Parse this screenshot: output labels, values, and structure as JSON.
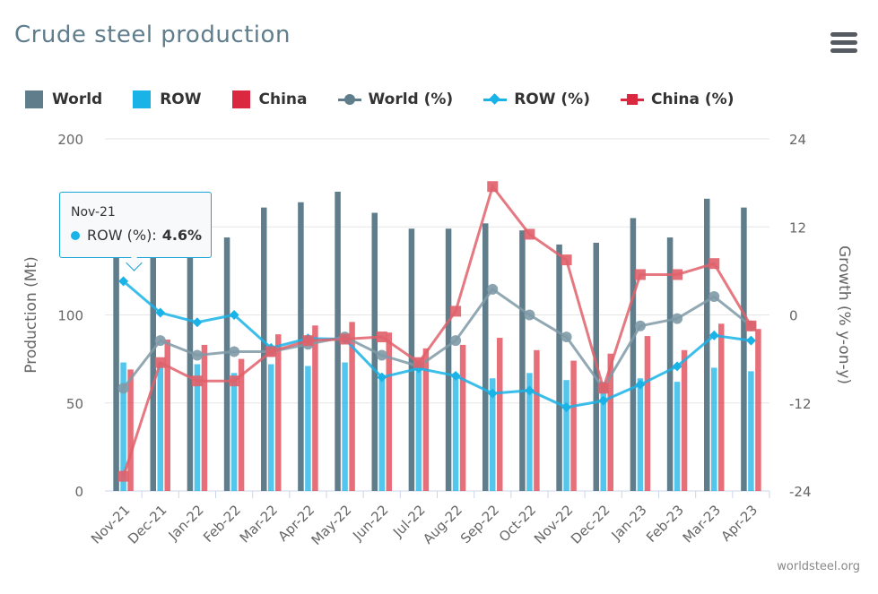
{
  "title": "Crude steel production",
  "menu": {
    "icon": "hamburger-menu-icon"
  },
  "credits": "worldsteel.org",
  "colors": {
    "world": "#607d8b",
    "row": "#1ab3e8",
    "china": "#e0404d",
    "title": "#5f7d8c",
    "tooltip_border": "#1aa3d6"
  },
  "legend": [
    {
      "label": "World",
      "kind": "bar",
      "color": "#607d8b"
    },
    {
      "label": "ROW",
      "kind": "bar",
      "color": "#1ab3e8"
    },
    {
      "label": "China",
      "kind": "bar",
      "color": "#d9283f"
    },
    {
      "label": "World (%)",
      "kind": "line-circle",
      "color": "#607d8b"
    },
    {
      "label": "ROW (%)",
      "kind": "line-diamond",
      "color": "#1ab3e8"
    },
    {
      "label": "China (%)",
      "kind": "line-square",
      "color": "#d9283f"
    }
  ],
  "tooltip": {
    "header": "Nov-21",
    "series": "ROW (%):",
    "value": "4.6%"
  },
  "chart_data": {
    "type": "bar",
    "categories": [
      "Nov-21",
      "Dec-21",
      "Jan-22",
      "Feb-22",
      "Mar-22",
      "Apr-22",
      "May-22",
      "Jun-22",
      "Jul-22",
      "Aug-22",
      "Sep-22",
      "Oct-22",
      "Nov-22",
      "Dec-22",
      "Jan-23",
      "Feb-23",
      "Mar-23",
      "Apr-23"
    ],
    "ylabel": "Production (Mt)",
    "ylim": [
      0,
      200
    ],
    "yticks": [
      0,
      50,
      100,
      150,
      200
    ],
    "y2label": "Growth (% y-on-y)",
    "y2lim": [
      -24,
      24
    ],
    "y2ticks": [
      -24,
      -12,
      0,
      12,
      24
    ],
    "grid": true,
    "legend_position": "top",
    "series": [
      {
        "name": "World",
        "type": "bar",
        "axis": "left",
        "values": [
          143,
          158,
          157,
          144,
          161,
          164,
          170,
          158,
          149,
          149,
          152,
          148,
          140,
          141,
          155,
          144,
          166,
          161
        ]
      },
      {
        "name": "ROW",
        "type": "bar",
        "axis": "left",
        "values": [
          73,
          73,
          72,
          67,
          72,
          71,
          73,
          66,
          68,
          67,
          64,
          67,
          63,
          62,
          64,
          62,
          70,
          68
        ]
      },
      {
        "name": "China",
        "type": "bar",
        "axis": "left",
        "values": [
          69,
          86,
          83,
          75,
          89,
          94,
          96,
          90,
          81,
          83,
          87,
          80,
          74,
          78,
          88,
          80,
          95,
          92
        ]
      },
      {
        "name": "World (%)",
        "type": "line",
        "axis": "right",
        "values": [
          -10,
          -3.5,
          -5.5,
          -5,
          -5,
          -4,
          -3,
          -5.5,
          -7,
          -3.5,
          3.5,
          0,
          -3,
          -10,
          -1.5,
          -0.5,
          2.5,
          -1.5
        ]
      },
      {
        "name": "ROW (%)",
        "type": "line",
        "axis": "right",
        "values": [
          4.6,
          0.3,
          -1,
          0,
          -4.5,
          -3.2,
          -3.3,
          -8.5,
          -7.3,
          -8.3,
          -10.7,
          -10.3,
          -12.6,
          -11.7,
          -9.5,
          -7,
          -2.8,
          -3.5
        ]
      },
      {
        "name": "China (%)",
        "type": "line",
        "axis": "right",
        "values": [
          -22,
          -6.5,
          -9,
          -9,
          -5,
          -3.5,
          -3.3,
          -3,
          -6.5,
          0.5,
          17.5,
          11,
          7.5,
          -10,
          5.5,
          5.5,
          7,
          -1.5
        ]
      }
    ]
  }
}
